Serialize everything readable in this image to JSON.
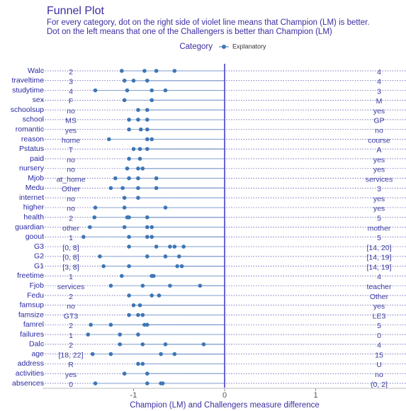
{
  "chart_data": {
    "type": "lollipop",
    "title": "Funnel Plot",
    "subtitle": [
      "For every category, dot on the right side of violet line means that Champion (LM) is better.",
      "Dot on the left means that one of the Challengers is better than Champion (LM)"
    ],
    "legend_title": "Category",
    "series_name": "Explanatory",
    "color": "#3d76b5",
    "line_color": "#3a32c4",
    "xlabel": "Champion (LM) and Challengers measure difference",
    "xlim": [
      -2,
      2
    ],
    "xticks": [
      -1,
      0,
      1
    ],
    "rows": [
      {
        "name": "Walc",
        "challenger": "2",
        "champion": "4",
        "values": [
          -1.13,
          -0.88,
          -0.75,
          -0.55
        ]
      },
      {
        "name": "traveltime",
        "challenger": "3",
        "champion": "4",
        "values": [
          -1.1,
          -1.0,
          -0.85
        ]
      },
      {
        "name": "studytime",
        "challenger": "4",
        "champion": "3",
        "values": [
          -1.42,
          -1.07,
          -0.8,
          -0.65
        ]
      },
      {
        "name": "sex",
        "challenger": "F",
        "champion": "M",
        "values": [
          -1.1,
          -0.8
        ]
      },
      {
        "name": "schoolsup",
        "challenger": "no",
        "champion": "yes",
        "values": [
          -0.95,
          -0.85
        ]
      },
      {
        "name": "school",
        "challenger": "MS",
        "champion": "GP",
        "values": [
          -1.05,
          -0.95,
          -0.85
        ]
      },
      {
        "name": "romantic",
        "challenger": "yes",
        "champion": "no",
        "values": [
          -1.05,
          -0.92,
          -0.85
        ]
      },
      {
        "name": "reason",
        "challenger": "home",
        "champion": "course",
        "values": [
          -1.27,
          -0.85,
          -0.8
        ]
      },
      {
        "name": "Pstatus",
        "challenger": "T",
        "champion": "A",
        "values": [
          -1.0,
          -0.93,
          -0.85
        ]
      },
      {
        "name": "paid",
        "challenger": "no",
        "champion": "yes",
        "values": [
          -1.05,
          -0.93
        ]
      },
      {
        "name": "nursery",
        "challenger": "no",
        "champion": "yes",
        "values": [
          -1.07,
          -0.95,
          -0.9
        ]
      },
      {
        "name": "Mjob",
        "challenger": "at_home",
        "champion": "services",
        "values": [
          -1.2,
          -1.05,
          -0.95,
          -0.75
        ]
      },
      {
        "name": "Medu",
        "challenger": "Other",
        "champion": "3",
        "values": [
          -1.25,
          -1.12,
          -0.95,
          -0.75
        ]
      },
      {
        "name": "internet",
        "challenger": "no",
        "champion": "yes",
        "values": [
          -1.1,
          -0.95
        ]
      },
      {
        "name": "higher",
        "challenger": "no",
        "champion": "yes",
        "values": [
          -1.42,
          -1.1,
          -0.65
        ]
      },
      {
        "name": "health",
        "challenger": "2",
        "champion": "5",
        "values": [
          -1.43,
          -1.07,
          -1.05,
          -0.85
        ]
      },
      {
        "name": "guardian",
        "challenger": "other",
        "champion": "mother",
        "values": [
          -1.48,
          -1.1,
          -0.85,
          -0.8
        ]
      },
      {
        "name": "goout",
        "challenger": "1",
        "champion": "5",
        "values": [
          -1.55,
          -1.05,
          -0.85,
          -0.8
        ]
      },
      {
        "name": "G3",
        "challenger": "[0, 8]",
        "champion": "[14, 20]",
        "values": [
          -1.05,
          -0.75,
          -0.6,
          -0.55,
          -0.45
        ]
      },
      {
        "name": "G2",
        "challenger": "[0, 8]",
        "champion": "[14, 19]",
        "values": [
          -1.37,
          -0.85,
          -0.65,
          -0.5
        ]
      },
      {
        "name": "G1",
        "challenger": "[3, 8]",
        "champion": "[14, 19]",
        "values": [
          -1.33,
          -1.05,
          -0.52,
          -0.47
        ]
      },
      {
        "name": "freetime",
        "challenger": "1",
        "champion": "4",
        "values": [
          -1.13,
          -0.8,
          -0.78
        ]
      },
      {
        "name": "Fjob",
        "challenger": "services",
        "champion": "teacher",
        "values": [
          -1.25,
          -0.9,
          -0.6,
          -0.27
        ]
      },
      {
        "name": "Fedu",
        "challenger": "2",
        "champion": "Other",
        "values": [
          -1.05,
          -0.8,
          -0.72
        ]
      },
      {
        "name": "famsup",
        "challenger": "no",
        "champion": "yes",
        "values": [
          -1.0,
          -0.93
        ]
      },
      {
        "name": "famsize",
        "challenger": "GT3",
        "champion": "LE3",
        "values": [
          -1.05,
          -0.95,
          -0.9
        ]
      },
      {
        "name": "famrel",
        "challenger": "2",
        "champion": "5",
        "values": [
          -1.47,
          -1.25,
          -0.88,
          -0.85
        ]
      },
      {
        "name": "failures",
        "challenger": "1",
        "champion": "0",
        "values": [
          -1.5,
          -1.15,
          -0.95
        ]
      },
      {
        "name": "Dalc",
        "challenger": "2",
        "champion": "4",
        "values": [
          -1.15,
          -0.9,
          -0.65,
          -0.23
        ]
      },
      {
        "name": "age",
        "challenger": "[18, 22]",
        "champion": "15",
        "values": [
          -1.45,
          -1.25,
          -0.7,
          -0.55
        ]
      },
      {
        "name": "address",
        "challenger": "R",
        "champion": "U",
        "values": [
          -0.95,
          -0.9
        ]
      },
      {
        "name": "activities",
        "challenger": "yes",
        "champion": "no",
        "values": [
          -1.1,
          -0.85
        ]
      },
      {
        "name": "absences",
        "challenger": "0",
        "champion": "(0, 2]",
        "values": [
          -1.42,
          -0.85,
          -0.7,
          -0.68
        ]
      }
    ]
  }
}
